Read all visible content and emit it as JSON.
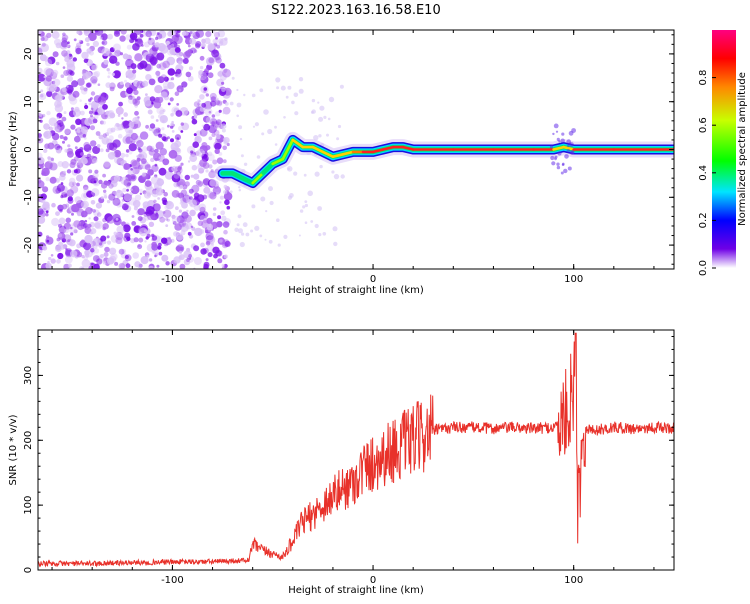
{
  "title": "S122.2023.163.16.58.E10",
  "colors": {
    "snr_line": "#e8312a",
    "axis": "#000000"
  },
  "colorbar_ticks": [
    "0.0",
    "0.2",
    "0.4",
    "0.6",
    "0.8"
  ],
  "chart_data": [
    {
      "type": "heatmap",
      "title": "S122.2023.163.16.58.E10",
      "xlabel": "Height of straight line (km)",
      "ylabel": "Frequency (Hz)",
      "xlim": [
        -167,
        150
      ],
      "ylim": [
        -25,
        25
      ],
      "xticks": [
        -100,
        0,
        100
      ],
      "yticks": [
        -20,
        -10,
        0,
        10,
        20
      ],
      "colorbar": {
        "label": "Normalized spectral amplitude",
        "range": [
          0,
          1
        ],
        "ticks": [
          0.0,
          0.2,
          0.4,
          0.6,
          0.8
        ]
      },
      "noise_region_x": [
        -167,
        -75
      ],
      "ridge": {
        "x": [
          -75,
          -70,
          -65,
          -60,
          -55,
          -50,
          -45,
          -40,
          -35,
          -30,
          -25,
          -20,
          -15,
          -10,
          -5,
          0,
          5,
          10,
          15,
          20,
          40,
          60,
          80,
          90,
          95,
          100,
          120,
          150
        ],
        "y": [
          -5,
          -5,
          -6,
          -7,
          -5,
          -3,
          -2,
          2,
          0.5,
          0.5,
          -0.5,
          -1.5,
          -1,
          -0.5,
          -0.5,
          -0.5,
          0,
          0.5,
          0.5,
          0,
          0,
          0,
          0,
          0,
          0.5,
          0,
          0,
          0
        ],
        "amplitude": [
          0.35,
          0.4,
          0.4,
          0.45,
          0.45,
          0.4,
          0.5,
          0.55,
          0.75,
          0.7,
          0.65,
          0.6,
          0.6,
          0.65,
          0.85,
          0.9,
          0.9,
          0.85,
          0.9,
          0.95,
          0.95,
          0.95,
          0.95,
          0.9,
          0.55,
          0.9,
          0.95,
          0.95
        ]
      }
    },
    {
      "type": "line",
      "xlabel": "Height of straight line (km)",
      "ylabel": "SNR (10 * v/v)",
      "xlim": [
        -167,
        150
      ],
      "ylim": [
        0,
        370
      ],
      "xticks": [
        -100,
        0,
        100
      ],
      "yticks": [
        0,
        100,
        200,
        300
      ],
      "series": [
        {
          "x": [
            -167,
            -140,
            -110,
            -80,
            -62,
            -60,
            -55,
            -50,
            -45,
            -40,
            -35,
            -30,
            -25,
            -20,
            -15,
            -10,
            -5,
            0,
            10,
            20,
            30,
            40,
            50,
            60,
            70,
            80,
            90,
            95,
            100,
            101,
            102,
            105,
            110,
            120,
            130,
            140,
            150
          ],
          "y": [
            10,
            10,
            12,
            13,
            15,
            40,
            30,
            25,
            20,
            45,
            75,
            85,
            100,
            115,
            125,
            135,
            155,
            165,
            185,
            200,
            215,
            220,
            220,
            218,
            220,
            218,
            220,
            230,
            280,
            360,
            100,
            220,
            215,
            220,
            218,
            220,
            218
          ]
        }
      ]
    }
  ]
}
